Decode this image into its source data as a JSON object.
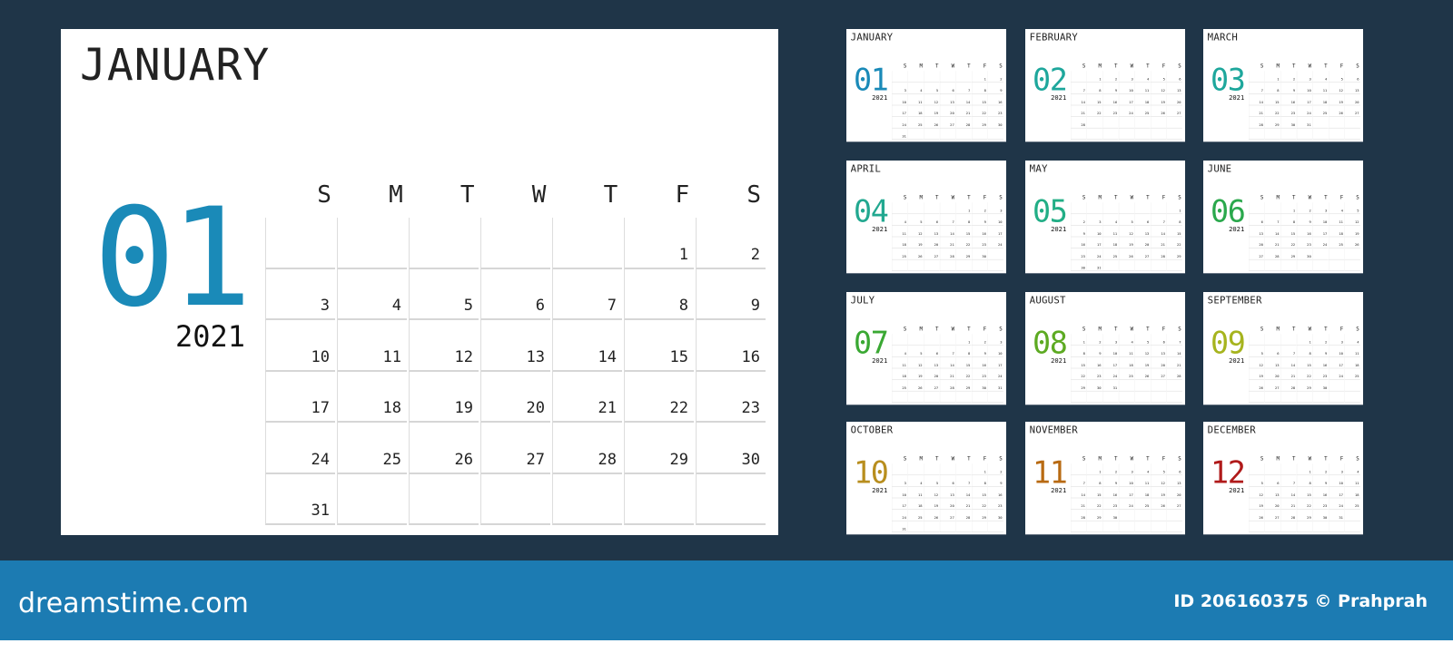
{
  "weekdays": [
    "S",
    "M",
    "T",
    "W",
    "T",
    "F",
    "S"
  ],
  "year": "2021",
  "featured_month": 0,
  "months": [
    {
      "name": "JANUARY",
      "number": "01",
      "color": "#1a8ab8",
      "leading_blanks": 5,
      "days": 31
    },
    {
      "name": "FEBRUARY",
      "number": "02",
      "color": "#1ea79c",
      "leading_blanks": 1,
      "days": 28
    },
    {
      "name": "MARCH",
      "number": "03",
      "color": "#1ea79c",
      "leading_blanks": 1,
      "days": 31
    },
    {
      "name": "APRIL",
      "number": "04",
      "color": "#22a890",
      "leading_blanks": 4,
      "days": 30
    },
    {
      "name": "MAY",
      "number": "05",
      "color": "#22ae86",
      "leading_blanks": 6,
      "days": 31
    },
    {
      "name": "JUNE",
      "number": "06",
      "color": "#2aa84c",
      "leading_blanks": 2,
      "days": 30
    },
    {
      "name": "JULY",
      "number": "07",
      "color": "#3aa833",
      "leading_blanks": 4,
      "days": 31
    },
    {
      "name": "AUGUST",
      "number": "08",
      "color": "#5daa22",
      "leading_blanks": 0,
      "days": 31
    },
    {
      "name": "SEPTEMBER",
      "number": "09",
      "color": "#a6b41e",
      "leading_blanks": 3,
      "days": 30
    },
    {
      "name": "OCTOBER",
      "number": "10",
      "color": "#b88e1e",
      "leading_blanks": 5,
      "days": 31
    },
    {
      "name": "NOVEMBER",
      "number": "11",
      "color": "#b86a12",
      "leading_blanks": 1,
      "days": 30
    },
    {
      "name": "DECEMBER",
      "number": "12",
      "color": "#b01a1a",
      "leading_blanks": 3,
      "days": 31
    }
  ],
  "footer": {
    "brand": "dreamstime.com",
    "credit": "ID 206160375 © Prahprah"
  }
}
